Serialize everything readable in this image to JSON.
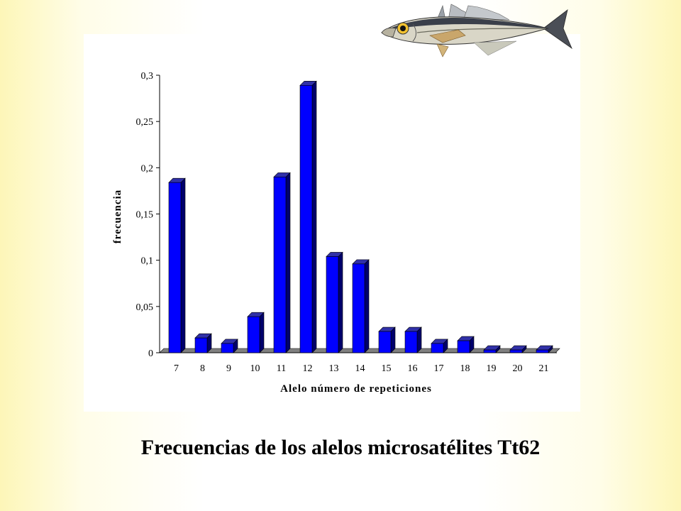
{
  "caption": "Frecuencias de los alelos microsatélites Tt62",
  "fish_illustration": "mackerel-fish-image",
  "chart_data": {
    "type": "bar",
    "xlabel": "Alelo número de repeticiones",
    "ylabel": "frecuencia",
    "categories": [
      "7",
      "8",
      "9",
      "10",
      "11",
      "12",
      "13",
      "14",
      "15",
      "16",
      "17",
      "18",
      "19",
      "20",
      "21"
    ],
    "values": [
      0.184,
      0.016,
      0.01,
      0.039,
      0.19,
      0.289,
      0.104,
      0.096,
      0.023,
      0.023,
      0.01,
      0.013,
      0.003,
      0.003,
      0.003
    ],
    "ylim": [
      0,
      0.3
    ],
    "yticks": [
      0,
      0.05,
      0.1,
      0.15,
      0.2,
      0.25,
      0.3
    ],
    "ytick_labels": [
      "0",
      "0,05",
      "0,1",
      "0,15",
      "0,2",
      "0,25",
      "0,3"
    ],
    "grid": false,
    "legend": "none",
    "bar_color": "#0000ff",
    "bar_side_color": "#00006b",
    "bar_top_color": "#3030a8",
    "floor_color": "#808080"
  }
}
